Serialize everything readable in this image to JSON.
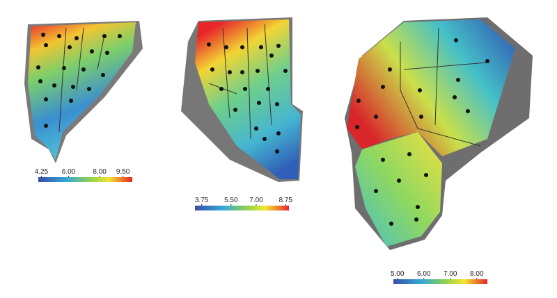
{
  "panels": [
    {
      "colorbar": {
        "range": [
          4.05,
          10.1
        ],
        "ticks": [
          4.25,
          {
            "value": 6,
            "label": "6.00"
          },
          {
            "value": 8,
            "label": "8.00"
          },
          {
            "value": 9.5,
            "label": "9.50"
          }
        ]
      }
    },
    {
      "colorbar": {
        "range": [
          3.35,
          8.95
        ],
        "ticks": [
          3.75,
          {
            "value": 5.5,
            "label": "5.50"
          },
          {
            "value": 7,
            "label": "7.00"
          },
          8.75
        ]
      }
    },
    {
      "colorbar": {
        "range": [
          4.85,
          8.4
        ],
        "ticks": [
          {
            "value": 5,
            "label": "5.00"
          },
          {
            "value": 6,
            "label": "6.00"
          },
          {
            "value": 7,
            "label": "7.00"
          },
          {
            "value": 8,
            "label": "8.00"
          }
        ]
      }
    }
  ]
}
